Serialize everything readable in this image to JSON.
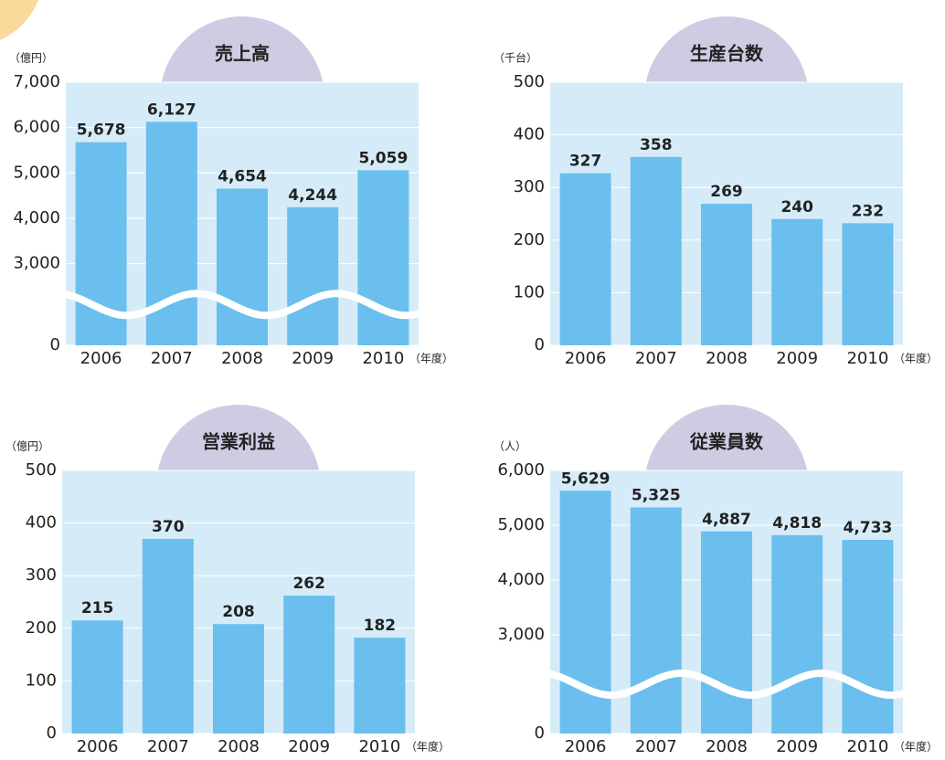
{
  "chart_data": [
    {
      "type": "bar",
      "title": "売上高",
      "y_unit": "（億円）",
      "x_unit": "（年度）",
      "categories": [
        "2006",
        "2007",
        "2008",
        "2009",
        "2010"
      ],
      "values": [
        5678,
        6127,
        4654,
        4244,
        5059
      ],
      "value_labels": [
        "5,678",
        "6,127",
        "4,654",
        "4,244",
        "5,059"
      ],
      "color": "#6bbfee",
      "ylim": [
        0,
        7000
      ],
      "yticks": [
        0,
        {
          "value": 3000,
          "label": "3,000"
        },
        {
          "value": 4000,
          "label": "4,000"
        },
        {
          "value": 5000,
          "label": "5,000"
        },
        {
          "value": 6000,
          "label": "6,000"
        },
        {
          "value": 7000,
          "label": "7,000"
        }
      ],
      "grid": true
    },
    {
      "type": "bar",
      "title": "生産台数",
      "y_unit": "（千台）",
      "x_unit": "（年度）",
      "categories": [
        "2006",
        "2007",
        "2008",
        "2009",
        "2010"
      ],
      "values": [
        327,
        358,
        269,
        240,
        232
      ],
      "color": "#6bbfee",
      "ylim": [
        0,
        500
      ],
      "yticks": [
        0,
        100,
        200,
        300,
        400,
        500
      ],
      "grid": true
    },
    {
      "type": "bar",
      "title": "営業利益",
      "y_unit": "（億円）",
      "x_unit": "（年度）",
      "categories": [
        "2006",
        "2007",
        "2008",
        "2009",
        "2010"
      ],
      "values": [
        215,
        370,
        208,
        262,
        182
      ],
      "color": "#6bbfee",
      "ylim": [
        0,
        500
      ],
      "yticks": [
        0,
        100,
        200,
        300,
        400,
        500
      ],
      "grid": true
    },
    {
      "type": "bar",
      "title": "従業員数",
      "y_unit": "（人）",
      "x_unit": "（年度）",
      "categories": [
        "2006",
        "2007",
        "2008",
        "2009",
        "2010"
      ],
      "values": [
        5629,
        5325,
        4887,
        4818,
        4733
      ],
      "value_labels": [
        "5,629",
        "5,325",
        "4,887",
        "4,818",
        "4,733"
      ],
      "color": "#6bbfee",
      "ylim": [
        0,
        6000
      ],
      "yticks": [
        0,
        {
          "value": 3000,
          "label": "3,000"
        },
        {
          "value": 4000,
          "label": "4,000"
        },
        {
          "value": 5000,
          "label": "5,000"
        },
        {
          "value": 6000,
          "label": "6,000"
        }
      ],
      "grid": true
    }
  ]
}
